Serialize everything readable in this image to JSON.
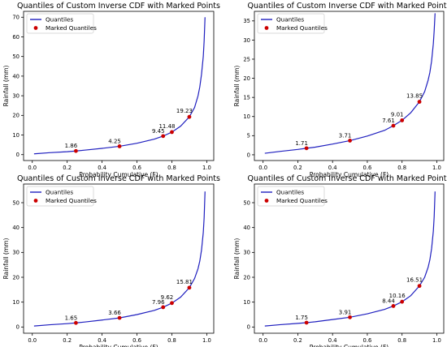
{
  "colors": {
    "line": "#1f1fbf",
    "marker": "#cc0000",
    "frame": "#000000"
  },
  "chart_data": [
    {
      "type": "line",
      "title": "Quantiles of Custom Inverse CDF with Marked Points",
      "xlabel": "Probability Cumulative (F)",
      "ylabel": "Rainfall (mm)",
      "xlim": [
        -0.05,
        1.04
      ],
      "ylim": [
        -3,
        73
      ],
      "xticks": [
        0.0,
        0.2,
        0.4,
        0.6,
        0.8,
        1.0
      ],
      "yticks": [
        0,
        10,
        20,
        30,
        40,
        50,
        60,
        70
      ],
      "xtick_labels": [
        "0.0",
        "0.2",
        "0.4",
        "0.6",
        "0.8",
        "1.0"
      ],
      "ytick_labels": [
        "0",
        "10",
        "20",
        "30",
        "40",
        "50",
        "60",
        "70"
      ],
      "legend": {
        "placement": "upper-left",
        "entries": [
          "Quantiles",
          "Marked Quantiles"
        ]
      },
      "series": [
        {
          "name": "Quantiles",
          "x": [
            0.01,
            0.1,
            0.2,
            0.25,
            0.3,
            0.4,
            0.5,
            0.6,
            0.7,
            0.75,
            0.8,
            0.85,
            0.9,
            0.93,
            0.95,
            0.96,
            0.97,
            0.98,
            0.985,
            0.99
          ],
          "y": [
            0.4,
            1.0,
            1.5,
            1.86,
            2.3,
            3.2,
            4.25,
            5.8,
            7.9,
            9.45,
            11.48,
            14.5,
            19.23,
            24.0,
            30.0,
            34.5,
            41.0,
            50.0,
            58.0,
            70.0
          ]
        },
        {
          "name": "Marked Quantiles",
          "x": [
            0.25,
            0.5,
            0.75,
            0.8,
            0.9
          ],
          "y": [
            1.86,
            4.25,
            9.45,
            11.48,
            19.23
          ]
        }
      ],
      "annotations": [
        "1.86",
        "4.25",
        "9.45",
        "11.48",
        "19.23"
      ]
    },
    {
      "type": "line",
      "title": "Quantiles of Custom Inverse CDF with Marked Points",
      "xlabel": "Probability Cumulative (F)",
      "ylabel": "Rainfall (mm)",
      "xlim": [
        -0.05,
        1.04
      ],
      "ylim": [
        -1.5,
        37.5
      ],
      "xticks": [
        0.0,
        0.2,
        0.4,
        0.6,
        0.8,
        1.0
      ],
      "yticks": [
        0,
        5,
        10,
        15,
        20,
        25,
        30,
        35
      ],
      "xtick_labels": [
        "0.0",
        "0.2",
        "0.4",
        "0.6",
        "0.8",
        "1.0"
      ],
      "ytick_labels": [
        "0",
        "5",
        "10",
        "15",
        "20",
        "25",
        "30",
        "35"
      ],
      "legend": {
        "placement": "upper-left",
        "entries": [
          "Quantiles",
          "Marked Quantiles"
        ]
      },
      "series": [
        {
          "name": "Quantiles",
          "x": [
            0.01,
            0.1,
            0.2,
            0.25,
            0.3,
            0.4,
            0.5,
            0.6,
            0.7,
            0.75,
            0.8,
            0.85,
            0.9,
            0.93,
            0.95,
            0.96,
            0.97,
            0.98,
            0.985,
            0.99
          ],
          "y": [
            0.4,
            0.9,
            1.4,
            1.71,
            2.0,
            2.8,
            3.71,
            4.9,
            6.4,
            7.61,
            9.01,
            11.0,
            13.85,
            16.5,
            19.5,
            21.5,
            24.5,
            29.0,
            32.5,
            37.0
          ]
        },
        {
          "name": "Marked Quantiles",
          "x": [
            0.25,
            0.5,
            0.75,
            0.8,
            0.9
          ],
          "y": [
            1.71,
            3.71,
            7.61,
            9.01,
            13.85
          ]
        }
      ],
      "annotations": [
        "1.71",
        "3.71",
        "7.61",
        "9.01",
        "13.85"
      ]
    },
    {
      "type": "line",
      "title": "Quantiles of Custom Inverse CDF with Marked Points",
      "xlabel": "Probability Cumulative (F)",
      "ylabel": "Rainfall (mm)",
      "xlim": [
        -0.05,
        1.04
      ],
      "ylim": [
        -2.5,
        57.5
      ],
      "xticks": [
        0.0,
        0.2,
        0.4,
        0.6,
        0.8,
        1.0
      ],
      "yticks": [
        0,
        10,
        20,
        30,
        40,
        50
      ],
      "xtick_labels": [
        "0.0",
        "0.2",
        "0.4",
        "0.6",
        "0.8",
        "1.0"
      ],
      "ytick_labels": [
        "0",
        "10",
        "20",
        "30",
        "40",
        "50"
      ],
      "legend": {
        "placement": "upper-left",
        "entries": [
          "Quantiles",
          "Marked Quantiles"
        ]
      },
      "series": [
        {
          "name": "Quantiles",
          "x": [
            0.01,
            0.1,
            0.2,
            0.25,
            0.3,
            0.4,
            0.5,
            0.6,
            0.7,
            0.75,
            0.8,
            0.85,
            0.9,
            0.93,
            0.95,
            0.96,
            0.97,
            0.98,
            0.985,
            0.99
          ],
          "y": [
            0.4,
            0.9,
            1.35,
            1.65,
            2.0,
            2.8,
            3.66,
            5.0,
            6.7,
            7.96,
            9.62,
            12.0,
            15.81,
            19.5,
            23.5,
            26.5,
            31.0,
            38.0,
            44.0,
            54.5
          ]
        },
        {
          "name": "Marked Quantiles",
          "x": [
            0.25,
            0.5,
            0.75,
            0.8,
            0.9
          ],
          "y": [
            1.65,
            3.66,
            7.96,
            9.62,
            15.81
          ]
        }
      ],
      "annotations": [
        "1.65",
        "3.66",
        "7.96",
        "9.62",
        "15.81"
      ]
    },
    {
      "type": "line",
      "title": "Quantiles of Custom Inverse CDF with Marked Points",
      "xlabel": "Probability Cumulative (F)",
      "ylabel": "Rainfall (mm)",
      "xlim": [
        -0.05,
        1.04
      ],
      "ylim": [
        -2.5,
        57.5
      ],
      "xticks": [
        0.0,
        0.2,
        0.4,
        0.6,
        0.8,
        1.0
      ],
      "yticks": [
        0,
        10,
        20,
        30,
        40,
        50
      ],
      "xtick_labels": [
        "0.0",
        "0.2",
        "0.4",
        "0.6",
        "0.8",
        "1.0"
      ],
      "ytick_labels": [
        "0",
        "10",
        "20",
        "30",
        "40",
        "50"
      ],
      "legend": {
        "placement": "upper-left",
        "entries": [
          "Quantiles",
          "Marked Quantiles"
        ]
      },
      "series": [
        {
          "name": "Quantiles",
          "x": [
            0.01,
            0.1,
            0.2,
            0.25,
            0.3,
            0.4,
            0.5,
            0.6,
            0.7,
            0.75,
            0.8,
            0.85,
            0.9,
            0.93,
            0.95,
            0.96,
            0.97,
            0.98,
            0.985,
            0.99
          ],
          "y": [
            0.4,
            0.95,
            1.45,
            1.75,
            2.1,
            3.0,
            3.91,
            5.3,
            7.1,
            8.44,
            10.16,
            12.6,
            16.51,
            20.0,
            24.0,
            27.0,
            31.5,
            38.5,
            44.5,
            54.5
          ]
        },
        {
          "name": "Marked Quantiles",
          "x": [
            0.25,
            0.5,
            0.75,
            0.8,
            0.9
          ],
          "y": [
            1.75,
            3.91,
            8.44,
            10.16,
            16.51
          ]
        }
      ],
      "annotations": [
        "1.75",
        "3.91",
        "8.44",
        "10.16",
        "16.51"
      ]
    }
  ]
}
